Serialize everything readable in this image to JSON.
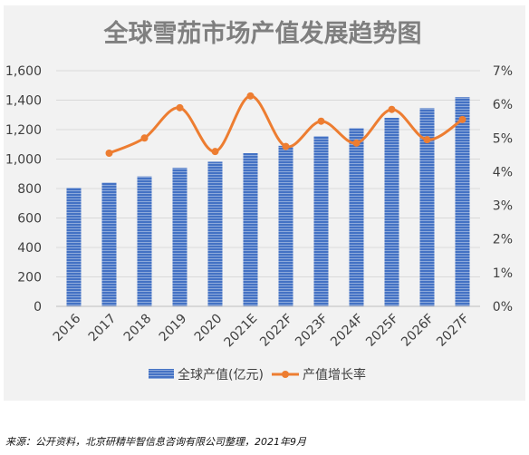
{
  "chart_data": {
    "type": "bar+line",
    "title": "全球雪茄市场产值发展趋势图",
    "categories": [
      "2016",
      "2017",
      "2018",
      "2019",
      "2020",
      "2021E",
      "2022F",
      "2023F",
      "2024F",
      "2025F",
      "2026F",
      "2027F"
    ],
    "series": [
      {
        "name": "全球产值(亿元)",
        "type": "bar",
        "axis": "left",
        "values": [
          805,
          840,
          882,
          940,
          982,
          1040,
          1090,
          1155,
          1210,
          1280,
          1345,
          1420
        ]
      },
      {
        "name": "产值增长率",
        "type": "line",
        "axis": "right",
        "values": [
          null,
          4.55,
          5.0,
          5.9,
          4.6,
          6.25,
          4.75,
          5.5,
          4.85,
          5.85,
          4.95,
          5.55
        ]
      }
    ],
    "left_axis": {
      "min": 0,
      "max": 1600,
      "step": 200,
      "tick_labels": [
        "0",
        "200",
        "400",
        "600",
        "800",
        "1,000",
        "1,200",
        "1,400",
        "1,600"
      ]
    },
    "right_axis": {
      "min": 0,
      "max": 7,
      "step": 1,
      "tick_labels": [
        "0%",
        "1%",
        "2%",
        "3%",
        "4%",
        "5%",
        "6%",
        "7%"
      ]
    },
    "grid": true,
    "legend_position": "bottom",
    "colors": {
      "bar": "#4472c4",
      "bar_stripe": "#8eaadb",
      "line": "#ed7d31",
      "grid": "#d9d9d9",
      "title": "#7f7f7f",
      "text": "#404040",
      "panel": "#f2f2f2"
    }
  },
  "source_note": "来源：公开资料，北京研精毕智信息咨询有限公司整理，2021年9月"
}
